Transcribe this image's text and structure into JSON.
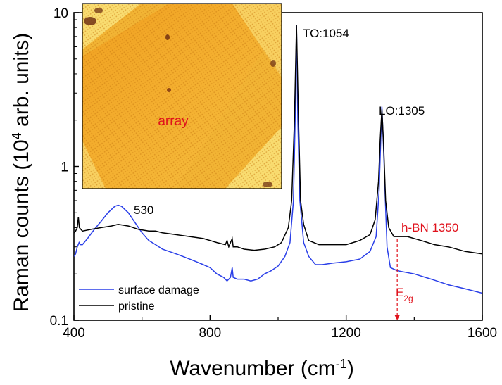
{
  "chart_data": {
    "type": "line",
    "x_scale": "linear",
    "y_scale": "log",
    "xlim": [
      400,
      1600
    ],
    "ylim": [
      0.1,
      10
    ],
    "xlabel": "Wavenumber (cm",
    "xlabel_sup": "-1",
    "xlabel_end": ")",
    "ylabel": "Raman counts (10",
    "ylabel_sup": "4",
    "ylabel_end": " arb. units)",
    "x_ticks": [
      400,
      800,
      1200,
      1600
    ],
    "x_tick_labels": [
      "400",
      "800",
      "1200",
      "1600"
    ],
    "y_ticks": [
      0.1,
      1,
      10
    ],
    "y_tick_labels": [
      "0.1",
      "1",
      "10"
    ],
    "series": [
      {
        "name": "surface damage",
        "color": "#2a3fe8",
        "points": [
          [
            400,
            0.26
          ],
          [
            405,
            0.27
          ],
          [
            410,
            0.3
          ],
          [
            415,
            0.32
          ],
          [
            418,
            0.31
          ],
          [
            425,
            0.31
          ],
          [
            440,
            0.34
          ],
          [
            460,
            0.39
          ],
          [
            480,
            0.44
          ],
          [
            500,
            0.5
          ],
          [
            520,
            0.55
          ],
          [
            530,
            0.56
          ],
          [
            540,
            0.55
          ],
          [
            560,
            0.5
          ],
          [
            580,
            0.43
          ],
          [
            600,
            0.37
          ],
          [
            620,
            0.33
          ],
          [
            640,
            0.31
          ],
          [
            660,
            0.29
          ],
          [
            680,
            0.28
          ],
          [
            700,
            0.27
          ],
          [
            720,
            0.26
          ],
          [
            740,
            0.25
          ],
          [
            760,
            0.24
          ],
          [
            780,
            0.23
          ],
          [
            800,
            0.22
          ],
          [
            820,
            0.2
          ],
          [
            840,
            0.19
          ],
          [
            850,
            0.18
          ],
          [
            860,
            0.19
          ],
          [
            865,
            0.22
          ],
          [
            868,
            0.19
          ],
          [
            880,
            0.185
          ],
          [
            900,
            0.185
          ],
          [
            920,
            0.18
          ],
          [
            940,
            0.185
          ],
          [
            960,
            0.2
          ],
          [
            980,
            0.21
          ],
          [
            1000,
            0.225
          ],
          [
            1020,
            0.26
          ],
          [
            1035,
            0.32
          ],
          [
            1045,
            0.6
          ],
          [
            1050,
            2.0
          ],
          [
            1054,
            8.3
          ],
          [
            1058,
            2.0
          ],
          [
            1064,
            0.6
          ],
          [
            1075,
            0.32
          ],
          [
            1090,
            0.26
          ],
          [
            1110,
            0.23
          ],
          [
            1130,
            0.23
          ],
          [
            1160,
            0.235
          ],
          [
            1200,
            0.24
          ],
          [
            1240,
            0.25
          ],
          [
            1270,
            0.28
          ],
          [
            1288,
            0.35
          ],
          [
            1297,
            0.7
          ],
          [
            1302,
            1.6
          ],
          [
            1305,
            2.45
          ],
          [
            1309,
            1.5
          ],
          [
            1315,
            0.6
          ],
          [
            1320,
            0.3
          ],
          [
            1330,
            0.22
          ],
          [
            1350,
            0.21
          ],
          [
            1400,
            0.2
          ],
          [
            1450,
            0.185
          ],
          [
            1500,
            0.17
          ],
          [
            1550,
            0.16
          ],
          [
            1600,
            0.15
          ]
        ]
      },
      {
        "name": "pristine",
        "color": "#000000",
        "points": [
          [
            400,
            0.37
          ],
          [
            405,
            0.38
          ],
          [
            410,
            0.4
          ],
          [
            413,
            0.47
          ],
          [
            416,
            0.4
          ],
          [
            425,
            0.38
          ],
          [
            450,
            0.39
          ],
          [
            480,
            0.4
          ],
          [
            510,
            0.41
          ],
          [
            530,
            0.42
          ],
          [
            560,
            0.41
          ],
          [
            590,
            0.39
          ],
          [
            620,
            0.38
          ],
          [
            640,
            0.38
          ],
          [
            660,
            0.37
          ],
          [
            700,
            0.36
          ],
          [
            740,
            0.35
          ],
          [
            780,
            0.34
          ],
          [
            800,
            0.33
          ],
          [
            820,
            0.32
          ],
          [
            845,
            0.31
          ],
          [
            850,
            0.33
          ],
          [
            855,
            0.3
          ],
          [
            865,
            0.34
          ],
          [
            868,
            0.3
          ],
          [
            880,
            0.3
          ],
          [
            900,
            0.29
          ],
          [
            930,
            0.285
          ],
          [
            960,
            0.29
          ],
          [
            990,
            0.3
          ],
          [
            1010,
            0.32
          ],
          [
            1030,
            0.4
          ],
          [
            1040,
            0.6
          ],
          [
            1048,
            2.0
          ],
          [
            1054,
            8.3
          ],
          [
            1060,
            2.0
          ],
          [
            1066,
            0.6
          ],
          [
            1075,
            0.42
          ],
          [
            1090,
            0.33
          ],
          [
            1120,
            0.31
          ],
          [
            1160,
            0.31
          ],
          [
            1200,
            0.31
          ],
          [
            1240,
            0.33
          ],
          [
            1270,
            0.36
          ],
          [
            1285,
            0.45
          ],
          [
            1295,
            0.8
          ],
          [
            1300,
            1.5
          ],
          [
            1305,
            2.35
          ],
          [
            1310,
            1.4
          ],
          [
            1316,
            0.6
          ],
          [
            1325,
            0.4
          ],
          [
            1340,
            0.35
          ],
          [
            1380,
            0.35
          ],
          [
            1420,
            0.33
          ],
          [
            1460,
            0.31
          ],
          [
            1500,
            0.3
          ],
          [
            1550,
            0.28
          ],
          [
            1600,
            0.27
          ]
        ]
      }
    ],
    "annotations": [
      {
        "text": "530",
        "x": 530,
        "y": 0.56
      },
      {
        "text": "TO:1054",
        "x": 1054,
        "y": 8.3
      },
      {
        "text": "LO:1305",
        "x": 1305,
        "y": 2.45
      }
    ],
    "marker": {
      "label": "h-BN 1350",
      "sub_label_base": "E",
      "sub_label_sub": "2g",
      "x": 1350,
      "color": "#e0121c"
    },
    "legend": {
      "position": "bottom-left",
      "entries": [
        "surface damage",
        "pristine"
      ]
    },
    "inset": {
      "label": "array"
    }
  }
}
